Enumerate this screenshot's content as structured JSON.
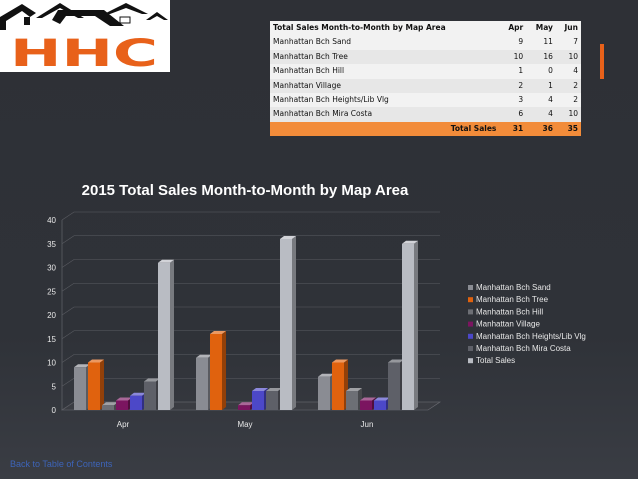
{
  "logo": {
    "text": "HHC"
  },
  "table": {
    "headers": [
      "Total Sales Month-to-Month by Map Area",
      "Apr",
      "May",
      "Jun"
    ],
    "rows": [
      [
        "Manhattan Bch Sand",
        "9",
        "11",
        "7"
      ],
      [
        "Manhattan Bch Tree",
        "10",
        "16",
        "10"
      ],
      [
        "Manhattan Bch Hill",
        "1",
        "0",
        "4"
      ],
      [
        "Manhattan Village",
        "2",
        "1",
        "2"
      ],
      [
        "Manhattan Bch Heights/Lib Vlg",
        "3",
        "4",
        "2"
      ],
      [
        "Manhattan Bch Mira Costa",
        "6",
        "4",
        "10"
      ]
    ],
    "totals_label": "Total Sales",
    "totals": [
      "31",
      "36",
      "35"
    ]
  },
  "chart_data": {
    "type": "bar",
    "title": "2015 Total Sales Month-to-Month by Map Area",
    "categories": [
      "Apr",
      "May",
      "Jun"
    ],
    "ylim": [
      0,
      40
    ],
    "yticks": [
      "0",
      "5",
      "10",
      "15",
      "20",
      "25",
      "30",
      "35",
      "40"
    ],
    "grid": true,
    "legend_position": "right",
    "series": [
      {
        "name": "Manhattan Bch Sand",
        "values": [
          9,
          11,
          7
        ],
        "color": "#8a8c93"
      },
      {
        "name": "Manhattan Bch Tree",
        "values": [
          10,
          16,
          10
        ],
        "color": "#e0620e"
      },
      {
        "name": "Manhattan Bch Hill",
        "values": [
          1,
          0,
          4
        ],
        "color": "#6d6f75"
      },
      {
        "name": "Manhattan Village",
        "values": [
          2,
          1,
          2
        ],
        "color": "#7b1560"
      },
      {
        "name": "Manhattan Bch Heights/Lib Vlg",
        "values": [
          3,
          4,
          2
        ],
        "color": "#4c48c8"
      },
      {
        "name": "Manhattan Bch Mira Costa",
        "values": [
          6,
          4,
          10
        ],
        "color": "#5e6068"
      },
      {
        "name": "Total Sales",
        "values": [
          31,
          36,
          35
        ],
        "color": "#b9bcc3"
      }
    ]
  },
  "footer": {
    "back_link": "Back to Table of Contents"
  }
}
